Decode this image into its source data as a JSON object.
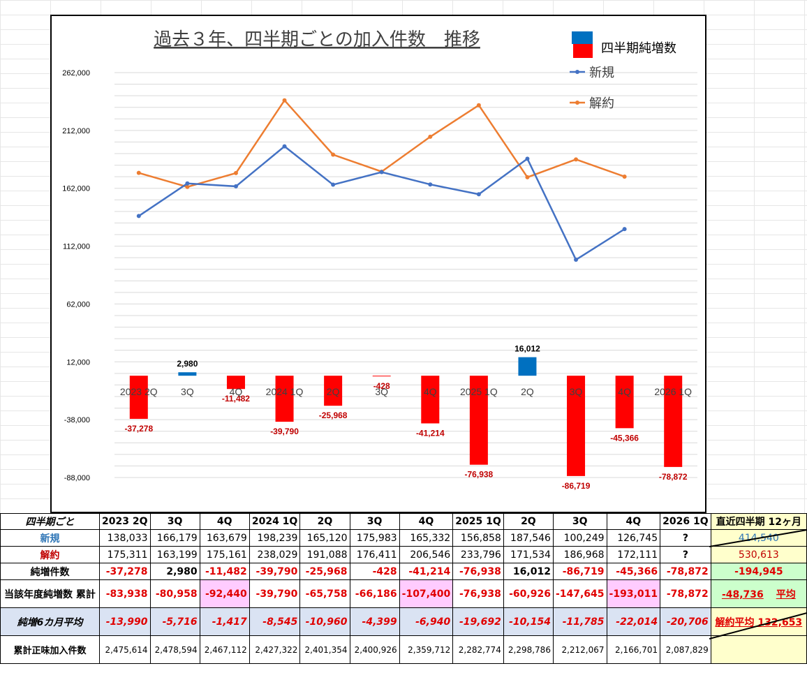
{
  "chart_data": {
    "type": "bar+line",
    "title": "過去３年、四半期ごとの加入件数　推移",
    "categories": [
      "2023 2Q",
      "3Q",
      "4Q",
      "2024 1Q",
      "2Q",
      "3Q",
      "4Q",
      "2025 1Q",
      "2Q",
      "3Q",
      "4Q",
      "2026 1Q"
    ],
    "y_ticks": [
      "262,000",
      "212,000",
      "162,000",
      "112,000",
      "62,000",
      "12,000",
      "-38,000",
      "-88,000"
    ],
    "y_tick_values": [
      262000,
      212000,
      162000,
      112000,
      62000,
      12000,
      -38000,
      -88000
    ],
    "ylim": [
      -88000,
      262000
    ],
    "grid": true,
    "legend_position": "top-right",
    "legend": [
      "四半期純増数",
      "新規",
      "解約"
    ],
    "series": [
      {
        "name": "四半期純増数",
        "kind": "bar",
        "values": [
          -37278,
          2980,
          -11482,
          -39790,
          -25968,
          -428,
          -41214,
          -76938,
          16012,
          -86719,
          -45366,
          -78872
        ],
        "labels": [
          "-37,278",
          "2,980",
          "-11,482",
          "-39,790",
          "-25,968",
          "-428",
          "-41,214",
          "-76,938",
          "16,012",
          "-86,719",
          "-45,366",
          "-78,872"
        ]
      },
      {
        "name": "新規",
        "kind": "line",
        "values": [
          138033,
          166179,
          163679,
          198239,
          165120,
          175983,
          165332,
          156858,
          187546,
          100249,
          126745,
          null
        ]
      },
      {
        "name": "解約",
        "kind": "line",
        "values": [
          175311,
          163199,
          175161,
          238029,
          191088,
          176411,
          206546,
          233796,
          171534,
          186968,
          172111,
          null
        ]
      }
    ],
    "colors": {
      "positive_bar": "#0070c0",
      "negative_bar": "#ff0000",
      "new_line": "#4472c4",
      "cancel_line": "#ed7d31"
    }
  },
  "table": {
    "header": {
      "label": "四半期ごと",
      "cols": [
        "2023 2Q",
        "3Q",
        "4Q",
        "2024 1Q",
        "2Q",
        "3Q",
        "4Q",
        "2025 1Q",
        "2Q",
        "3Q",
        "4Q",
        "2026 1Q"
      ],
      "summary": "直近四半期 12ヶ月"
    },
    "new": {
      "label": "新規",
      "values": [
        "138,033",
        "166,179",
        "163,679",
        "198,239",
        "165,120",
        "175,983",
        "165,332",
        "156,858",
        "187,546",
        "100,249",
        "126,745",
        "?"
      ],
      "summary": "414,540"
    },
    "cancel": {
      "label": "解約",
      "values": [
        "175,311",
        "163,199",
        "175,161",
        "238,029",
        "191,088",
        "176,411",
        "206,546",
        "233,796",
        "171,534",
        "186,968",
        "172,111",
        "?"
      ],
      "summary": "530,613"
    },
    "net": {
      "label": "純増件数",
      "values": [
        "-37,278",
        "2,980",
        "-11,482",
        "-39,790",
        "-25,968",
        "-428",
        "-41,214",
        "-76,938",
        "16,012",
        "-86,719",
        "-45,366",
        "-78,872"
      ],
      "summary": "-194,945"
    },
    "cumulative": {
      "label": "当該年度純増数 累計",
      "values": [
        "-83,938",
        "-80,958",
        "-92,440",
        "-39,790",
        "-65,758",
        "-66,186",
        "-107,400",
        "-76,938",
        "-60,926",
        "-147,645",
        "-193,011",
        "-78,872"
      ],
      "summary_value": "-48,736",
      "summary_note": "平均"
    },
    "avg6": {
      "label": "純増6カ月平均",
      "values": [
        "-13,990",
        "-5,716",
        "-1,417",
        "-8,545",
        "-10,960",
        "-4,399",
        "-6,940",
        "-19,692",
        "-10,154",
        "-11,785",
        "-22,014",
        "-20,706"
      ],
      "summary": "解約平均 132,653"
    },
    "total": {
      "label": "累計正味加入件数",
      "values": [
        "2,475,614",
        "2,478,594",
        "2,467,112",
        "2,427,322",
        "2,401,354",
        "2,400,926",
        "2,359,712",
        "2,282,774",
        "2,298,786",
        "2,212,067",
        "2,166,701",
        "2,087,829"
      ],
      "summary": ""
    }
  }
}
